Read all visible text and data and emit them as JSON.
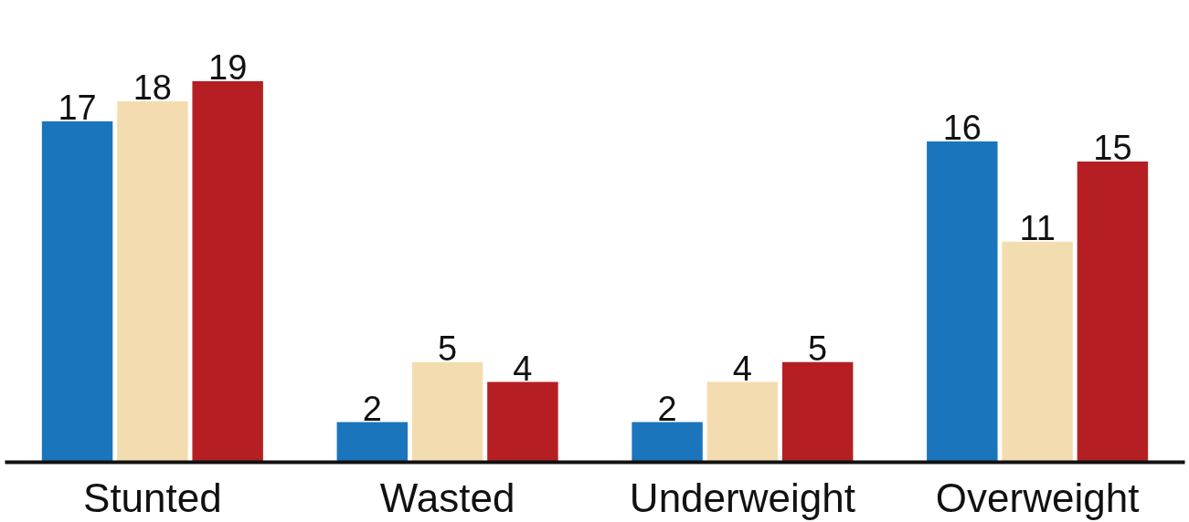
{
  "chart_data": {
    "type": "bar",
    "categories": [
      "Stunted",
      "Wasted",
      "Underweight",
      "Overweight"
    ],
    "series": [
      {
        "color": "#1a75bc",
        "values": [
          17,
          2,
          2,
          16
        ]
      },
      {
        "color": "#f3ddb0",
        "values": [
          18,
          5,
          4,
          11
        ]
      },
      {
        "color": "#b51f24",
        "values": [
          19,
          4,
          5,
          15
        ]
      }
    ],
    "data_labels": true
  }
}
